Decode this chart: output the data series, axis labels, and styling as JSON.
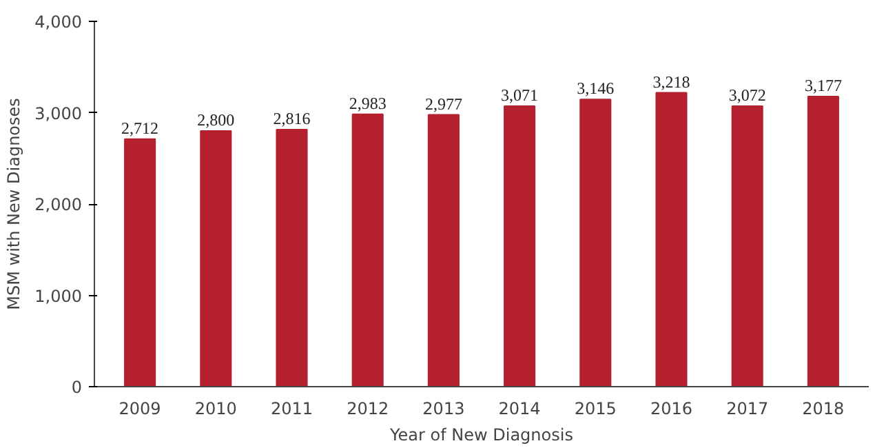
{
  "chart_data": {
    "type": "bar",
    "xlabel": "Year of New Diagnosis",
    "ylabel": "MSM with New Diagnoses",
    "categories": [
      "2009",
      "2010",
      "2011",
      "2012",
      "2013",
      "2014",
      "2015",
      "2016",
      "2017",
      "2018"
    ],
    "values": [
      2712,
      2800,
      2816,
      2983,
      2977,
      3071,
      3146,
      3218,
      3072,
      3177
    ],
    "value_labels": [
      "2,712",
      "2,800",
      "2,816",
      "2,983",
      "2,977",
      "3,071",
      "3,146",
      "3,218",
      "3,072",
      "3,177"
    ],
    "color": "#b5202e",
    "ylim": [
      0,
      4000
    ],
    "yticks": [
      {
        "value": 0,
        "label": "0"
      },
      {
        "value": 1000,
        "label": "1,000"
      },
      {
        "value": 2000,
        "label": "2,000"
      },
      {
        "value": 3000,
        "label": "3,000"
      },
      {
        "value": 4000,
        "label": "4,000"
      }
    ],
    "grid": false
  }
}
